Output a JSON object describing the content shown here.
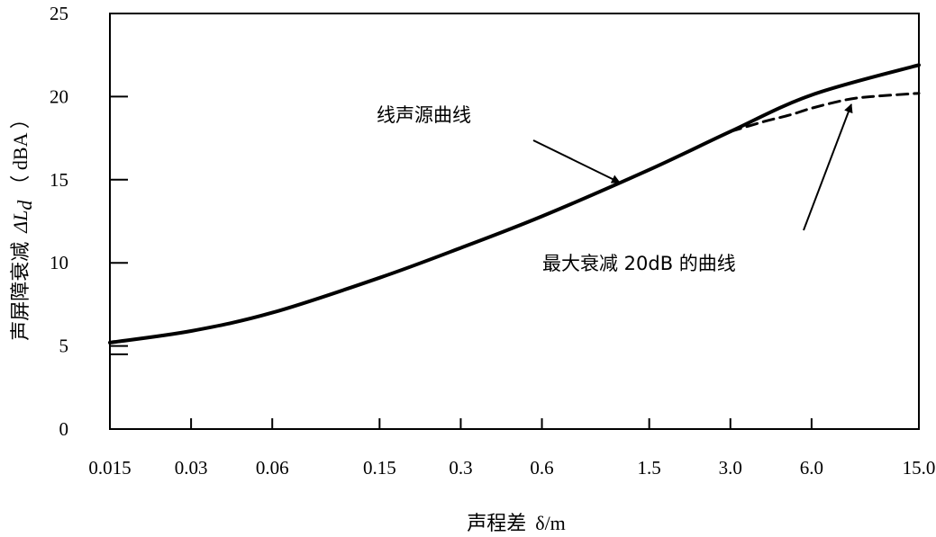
{
  "chart_data": {
    "type": "line",
    "x_scale": "log",
    "x_ticks": [
      "0.015",
      "0.03",
      "0.06",
      "0.15",
      "0.3",
      "0.6",
      "1.5",
      "3.0",
      "6.0",
      "15.0"
    ],
    "y_ticks": [
      "0",
      "5",
      "10",
      "15",
      "20",
      "25"
    ],
    "ylim": [
      0,
      25
    ],
    "xlim": [
      0.015,
      15.0
    ],
    "xlabel_cn": "声程差",
    "xlabel_sym": "δ/m",
    "ylabel_cn": "声屏障衰减",
    "ylabel_sym": "ΔL",
    "ylabel_sub": "d",
    "ylabel_unit": "（ dBA ）",
    "grid": false,
    "series": [
      {
        "name": "线声源曲线",
        "style": "solid",
        "color": "#000000",
        "x": [
          0.015,
          0.03,
          0.06,
          0.15,
          0.3,
          0.6,
          1.5,
          3.0,
          6.0,
          15.0
        ],
        "y": [
          5.2,
          5.9,
          7.0,
          9.1,
          10.9,
          12.8,
          15.6,
          17.9,
          20.1,
          21.9
        ]
      },
      {
        "name": "最大衰减 20dB 的曲线",
        "style": "dashed",
        "color": "#000000",
        "x": [
          3.0,
          4.0,
          5.0,
          6.0,
          8.0,
          10.0,
          15.0
        ],
        "y": [
          17.9,
          18.5,
          18.9,
          19.3,
          19.8,
          20.0,
          20.2
        ]
      }
    ],
    "annotations": [
      {
        "text": "线声源曲线"
      },
      {
        "text": "最大衰减 20dB 的曲线"
      }
    ]
  }
}
